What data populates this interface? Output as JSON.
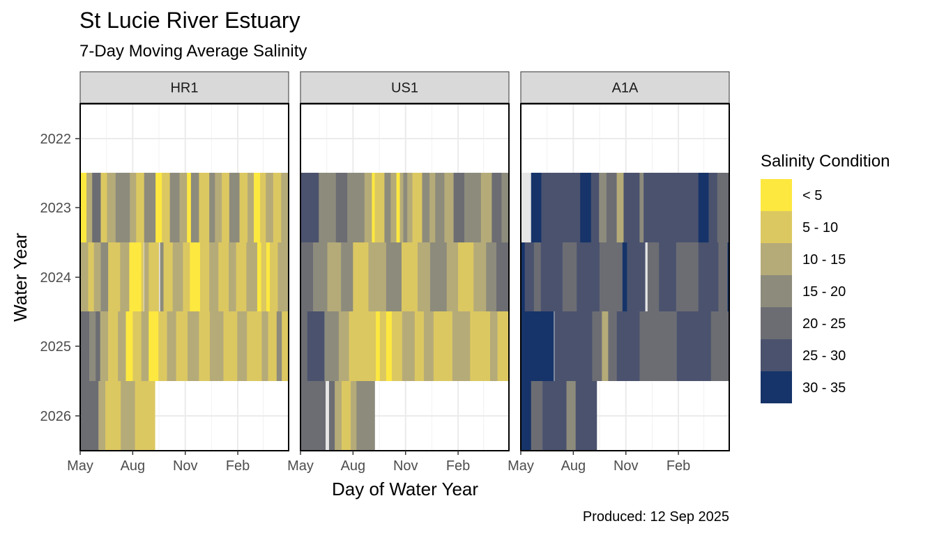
{
  "chart_data": {
    "type": "heatmap",
    "title": "St Lucie River Estuary",
    "subtitle": "7-Day Moving Average Salinity",
    "xlabel": "Day of Water Year",
    "ylabel": "Water Year",
    "caption": "Produced: 12 Sep 2025",
    "x_ticks": [
      "May",
      "Aug",
      "Nov",
      "Feb"
    ],
    "x_tick_days": [
      0,
      92,
      184,
      276
    ],
    "xlim": [
      0,
      365
    ],
    "y_ticks": [
      "2022",
      "2023",
      "2024",
      "2025",
      "2026"
    ],
    "grid": true,
    "legend": {
      "title": "Salinity Condition",
      "position": "right",
      "labels": [
        "< 5",
        "5 - 10",
        "10 - 15",
        "15 - 20",
        "20 - 25",
        "25 - 30",
        "30 - 35"
      ],
      "colors": [
        "#FDE840",
        "#DCC861",
        "#B5AB79",
        "#8D8B7C",
        "#6C6D73",
        "#4A526E",
        "#163469"
      ]
    },
    "missing_color": "#E6E6E6",
    "panels": [
      {
        "name": "HR1",
        "rows": [
          {
            "year": "2023",
            "segments": [
              [
                0,
                11,
                0
              ],
              [
                11,
                21,
                2
              ],
              [
                21,
                36,
                4
              ],
              [
                36,
                47,
                1
              ],
              [
                47,
                62,
                2
              ],
              [
                62,
                87,
                3
              ],
              [
                87,
                98,
                2
              ],
              [
                98,
                112,
                1
              ],
              [
                112,
                132,
                3
              ],
              [
                132,
                143,
                0
              ],
              [
                143,
                157,
                1
              ],
              [
                157,
                174,
                3
              ],
              [
                174,
                187,
                2
              ],
              [
                187,
                194,
                0
              ],
              [
                194,
                208,
                3
              ],
              [
                208,
                226,
                1
              ],
              [
                226,
                236,
                3
              ],
              [
                236,
                248,
                2
              ],
              [
                248,
                261,
                1
              ],
              [
                261,
                279,
                3
              ],
              [
                279,
                293,
                1
              ],
              [
                293,
                304,
                2
              ],
              [
                304,
                315,
                0
              ],
              [
                315,
                325,
                1
              ],
              [
                325,
                338,
                2
              ],
              [
                338,
                352,
                1
              ],
              [
                352,
                365,
                2
              ]
            ]
          },
          {
            "year": "2024",
            "segments": [
              [
                0,
                14,
                2
              ],
              [
                14,
                24,
                1
              ],
              [
                24,
                36,
                2
              ],
              [
                36,
                49,
                3
              ],
              [
                49,
                70,
                1
              ],
              [
                70,
                86,
                2
              ],
              [
                86,
                107,
                0
              ],
              [
                107,
                111,
                1
              ],
              [
                111,
                112,
                -1
              ],
              [
                112,
                120,
                2
              ],
              [
                120,
                138,
                1
              ],
              [
                138,
                140,
                -1
              ],
              [
                140,
                146,
                3
              ],
              [
                146,
                162,
                1
              ],
              [
                162,
                180,
                2
              ],
              [
                180,
                192,
                1
              ],
              [
                192,
                210,
                0
              ],
              [
                210,
                226,
                1
              ],
              [
                226,
                242,
                2
              ],
              [
                242,
                260,
                1
              ],
              [
                260,
                273,
                2
              ],
              [
                273,
                291,
                1
              ],
              [
                291,
                310,
                2
              ],
              [
                310,
                317,
                0
              ],
              [
                317,
                326,
                1
              ],
              [
                326,
                332,
                0
              ],
              [
                332,
                346,
                1
              ],
              [
                346,
                365,
                2
              ]
            ]
          },
          {
            "year": "2025",
            "segments": [
              [
                0,
                16,
                4
              ],
              [
                16,
                27,
                3
              ],
              [
                27,
                35,
                4
              ],
              [
                35,
                49,
                2
              ],
              [
                49,
                66,
                1
              ],
              [
                66,
                80,
                2
              ],
              [
                80,
                92,
                0
              ],
              [
                92,
                107,
                1
              ],
              [
                107,
                120,
                2
              ],
              [
                120,
                137,
                0
              ],
              [
                137,
                152,
                1
              ],
              [
                152,
                168,
                2
              ],
              [
                168,
                188,
                1
              ],
              [
                188,
                208,
                2
              ],
              [
                208,
                227,
                1
              ],
              [
                227,
                251,
                2
              ],
              [
                251,
                275,
                1
              ],
              [
                275,
                292,
                2
              ],
              [
                292,
                318,
                1
              ],
              [
                318,
                329,
                2
              ],
              [
                329,
                344,
                1
              ],
              [
                344,
                353,
                3
              ],
              [
                353,
                365,
                1
              ]
            ]
          },
          {
            "year": "2026",
            "segments": [
              [
                0,
                32,
                4
              ],
              [
                32,
                44,
                2
              ],
              [
                44,
                71,
                1
              ],
              [
                71,
                96,
                2
              ],
              [
                96,
                131,
                1
              ]
            ]
          }
        ]
      },
      {
        "name": "US1",
        "rows": [
          {
            "year": "2023",
            "segments": [
              [
                0,
                32,
                5
              ],
              [
                32,
                62,
                3
              ],
              [
                62,
                82,
                4
              ],
              [
                82,
                112,
                3
              ],
              [
                112,
                125,
                2
              ],
              [
                125,
                130,
                0
              ],
              [
                130,
                147,
                1
              ],
              [
                147,
                158,
                3
              ],
              [
                158,
                168,
                2
              ],
              [
                168,
                174,
                0
              ],
              [
                174,
                180,
                2
              ],
              [
                180,
                187,
                3
              ],
              [
                187,
                196,
                2
              ],
              [
                196,
                213,
                1
              ],
              [
                213,
                226,
                3
              ],
              [
                226,
                236,
                2
              ],
              [
                236,
                252,
                3
              ],
              [
                252,
                268,
                2
              ],
              [
                268,
                287,
                4
              ],
              [
                287,
                316,
                3
              ],
              [
                316,
                335,
                2
              ],
              [
                335,
                352,
                4
              ],
              [
                352,
                365,
                3
              ]
            ]
          },
          {
            "year": "2024",
            "segments": [
              [
                0,
                22,
                4
              ],
              [
                22,
                47,
                3
              ],
              [
                47,
                71,
                2
              ],
              [
                71,
                92,
                3
              ],
              [
                92,
                119,
                1
              ],
              [
                119,
                150,
                2
              ],
              [
                150,
                177,
                3
              ],
              [
                177,
                205,
                1
              ],
              [
                205,
                227,
                2
              ],
              [
                227,
                256,
                3
              ],
              [
                256,
                276,
                2
              ],
              [
                276,
                303,
                1
              ],
              [
                303,
                325,
                2
              ],
              [
                325,
                343,
                3
              ],
              [
                343,
                365,
                4
              ]
            ]
          },
          {
            "year": "2025",
            "segments": [
              [
                0,
                12,
                4
              ],
              [
                12,
                42,
                5
              ],
              [
                42,
                67,
                3
              ],
              [
                67,
                85,
                2
              ],
              [
                85,
                132,
                1
              ],
              [
                132,
                139,
                0
              ],
              [
                139,
                150,
                1
              ],
              [
                150,
                160,
                0
              ],
              [
                160,
                178,
                1
              ],
              [
                178,
                200,
                2
              ],
              [
                200,
                216,
                1
              ],
              [
                216,
                233,
                2
              ],
              [
                233,
                266,
                1
              ],
              [
                266,
                297,
                2
              ],
              [
                297,
                332,
                1
              ],
              [
                332,
                345,
                2
              ],
              [
                345,
                365,
                1
              ]
            ]
          },
          {
            "year": "2026",
            "segments": [
              [
                0,
                44,
                4
              ],
              [
                44,
                50,
                -1
              ],
              [
                50,
                60,
                4
              ],
              [
                60,
                72,
                2
              ],
              [
                72,
                88,
                1
              ],
              [
                88,
                98,
                2
              ],
              [
                98,
                130,
                3
              ]
            ]
          }
        ]
      },
      {
        "name": "A1A",
        "rows": [
          {
            "year": "2023",
            "segments": [
              [
                0,
                18,
                -1
              ],
              [
                18,
                36,
                6
              ],
              [
                36,
                104,
                5
              ],
              [
                104,
                123,
                6
              ],
              [
                123,
                137,
                5
              ],
              [
                137,
                150,
                3
              ],
              [
                150,
                168,
                4
              ],
              [
                168,
                180,
                2
              ],
              [
                180,
                208,
                5
              ],
              [
                208,
                215,
                3
              ],
              [
                215,
                262,
                5
              ],
              [
                262,
                311,
                5
              ],
              [
                311,
                329,
                6
              ],
              [
                329,
                344,
                5
              ],
              [
                344,
                365,
                4
              ]
            ]
          },
          {
            "year": "2024",
            "segments": [
              [
                0,
                7,
                6
              ],
              [
                7,
                23,
                5
              ],
              [
                23,
                35,
                4
              ],
              [
                35,
                73,
                5
              ],
              [
                73,
                98,
                4
              ],
              [
                98,
                138,
                5
              ],
              [
                138,
                178,
                4
              ],
              [
                178,
                186,
                6
              ],
              [
                186,
                218,
                5
              ],
              [
                218,
                222,
                -1
              ],
              [
                222,
                242,
                4
              ],
              [
                242,
                272,
                5
              ],
              [
                272,
                311,
                4
              ],
              [
                311,
                346,
                5
              ],
              [
                346,
                362,
                4
              ],
              [
                362,
                365,
                6
              ]
            ]
          },
          {
            "year": "2025",
            "segments": [
              [
                0,
                58,
                6
              ],
              [
                58,
                59,
                -1
              ],
              [
                59,
                125,
                5
              ],
              [
                125,
                142,
                4
              ],
              [
                142,
                153,
                2
              ],
              [
                153,
                168,
                4
              ],
              [
                168,
                208,
                5
              ],
              [
                208,
                273,
                4
              ],
              [
                273,
                333,
                5
              ],
              [
                333,
                365,
                4
              ]
            ]
          },
          {
            "year": "2026",
            "segments": [
              [
                0,
                18,
                6
              ],
              [
                18,
                38,
                4
              ],
              [
                38,
                80,
                5
              ],
              [
                80,
                96,
                3
              ],
              [
                96,
                133,
                5
              ]
            ]
          }
        ]
      }
    ]
  }
}
